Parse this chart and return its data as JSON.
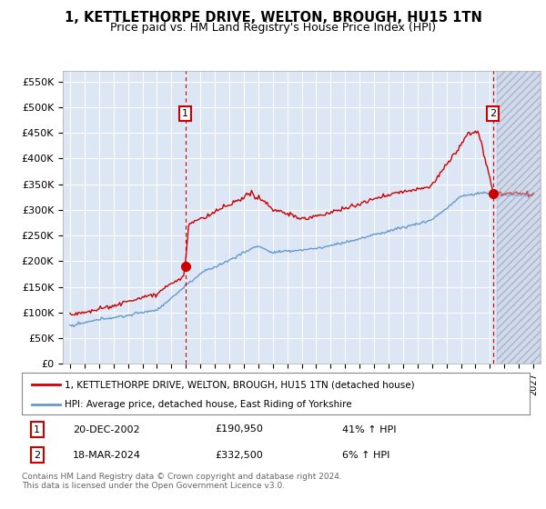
{
  "title": "1, KETTLETHORPE DRIVE, WELTON, BROUGH, HU15 1TN",
  "subtitle": "Price paid vs. HM Land Registry's House Price Index (HPI)",
  "legend_line1": "1, KETTLETHORPE DRIVE, WELTON, BROUGH, HU15 1TN (detached house)",
  "legend_line2": "HPI: Average price, detached house, East Riding of Yorkshire",
  "footnote": "Contains HM Land Registry data © Crown copyright and database right 2024.\nThis data is licensed under the Open Government Licence v3.0.",
  "transaction1_date": "20-DEC-2002",
  "transaction1_price": "£190,950",
  "transaction1_hpi": "41% ↑ HPI",
  "transaction2_date": "18-MAR-2024",
  "transaction2_price": "£332,500",
  "transaction2_hpi": "6% ↑ HPI",
  "ylim": [
    0,
    570000
  ],
  "yticks": [
    0,
    50000,
    100000,
    150000,
    200000,
    250000,
    300000,
    350000,
    400000,
    450000,
    500000,
    550000
  ],
  "ytick_labels": [
    "£0",
    "£50K",
    "£100K",
    "£150K",
    "£200K",
    "£250K",
    "£300K",
    "£350K",
    "£400K",
    "£450K",
    "£500K",
    "£550K"
  ],
  "bg_color": "#dce6f5",
  "future_bg_color": "#c8d4e8",
  "hatch_color": "#aab4c8",
  "grid_color": "#ffffff",
  "line_color_red": "#cc0000",
  "line_color_blue": "#6699cc",
  "transaction_color": "#cc0000",
  "sale1_x": 2002.97,
  "sale1_y": 190950,
  "sale2_x": 2024.21,
  "sale2_y": 332500,
  "future_start": 2024.5,
  "xlim_left": 1994.5,
  "xlim_right": 2027.5
}
